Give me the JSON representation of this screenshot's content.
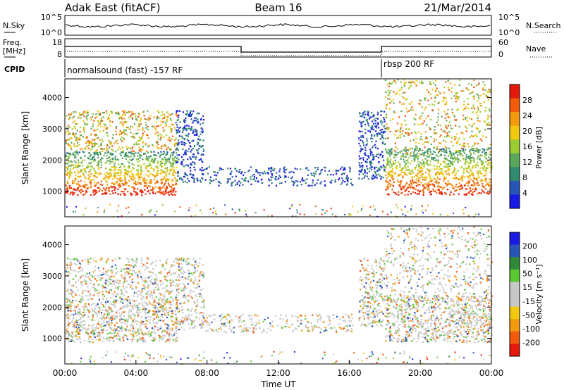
{
  "header": {
    "station": "Adak East (fitACF)",
    "beam": "Beam 16",
    "date": "21/Mar/2014"
  },
  "panels": {
    "nsky": {
      "left_label": "N.Sky",
      "right_label": "N.Search",
      "left_ticks": [
        "10^5",
        "10^0"
      ],
      "right_ticks": [
        "10^5",
        "10^0"
      ]
    },
    "freq": {
      "left_label_1": "Freq.",
      "left_label_2": "[MHz]",
      "left_ticks": [
        "18",
        "8"
      ],
      "right_label": "Nave",
      "right_ticks": [
        "60",
        "0"
      ]
    },
    "cpid": {
      "label": "CPID",
      "mode_1": "normalsound (fast) -157 RF",
      "mode_2": "rbsp 200 RF"
    }
  },
  "colors": {
    "power": [
      "#1a1ae6",
      "#2a55b8",
      "#2f8a6e",
      "#5aa65a",
      "#9ccc32",
      "#f2c80c",
      "#f29a0c",
      "#f25a0c",
      "#e61a0c"
    ],
    "velocity": [
      "#e61a0c",
      "#f25a0c",
      "#f29a0c",
      "#f2c80c",
      "#c8c8c8",
      "#c8c8c8",
      "#5ac832",
      "#2f8a3a",
      "#2a55b8",
      "#1a1ae6"
    ]
  },
  "chart_data": [
    {
      "type": "heatmap",
      "name": "power",
      "xlabel": "",
      "ylabel": "Slant Range [km]",
      "y_ticks": [
        "1000",
        "2000",
        "3000",
        "4000"
      ],
      "ylim": [
        180,
        4600
      ],
      "colorbar_label": "Power [dB]",
      "colorbar_ticks": [
        "4",
        "8",
        "12",
        "16",
        "20",
        "24",
        "28"
      ],
      "echo_bands": [
        {
          "t0": 0.0,
          "t1": 6.3,
          "r0": 900,
          "r1": 2300,
          "level": "strong"
        },
        {
          "t0": 0.0,
          "t1": 6.3,
          "r0": 2300,
          "r1": 3600,
          "level": "mixed"
        },
        {
          "t0": 6.2,
          "t1": 7.8,
          "r0": 1300,
          "r1": 3600,
          "level": "weak"
        },
        {
          "t0": 7.7,
          "t1": 16.2,
          "r0": 1200,
          "r1": 1800,
          "level": "weak"
        },
        {
          "t0": 16.5,
          "t1": 18.0,
          "r0": 1400,
          "r1": 3600,
          "level": "weak"
        },
        {
          "t0": 18.0,
          "t1": 24.0,
          "r0": 900,
          "r1": 2400,
          "level": "strong"
        },
        {
          "t0": 18.0,
          "t1": 24.0,
          "r0": 2200,
          "r1": 4600,
          "level": "mixed"
        }
      ]
    },
    {
      "type": "heatmap",
      "name": "velocity",
      "xlabel": "Time UT",
      "ylabel": "Slant Range [km]",
      "y_ticks": [
        "1000",
        "2000",
        "3000",
        "4000"
      ],
      "ylim": [
        180,
        4600
      ],
      "x_ticks": [
        "00:00",
        "04:00",
        "08:00",
        "12:00",
        "16:00",
        "20:00",
        "00:00"
      ],
      "xlim": [
        0,
        24
      ],
      "colorbar_label": "Velocity [m s⁻¹]",
      "colorbar_ticks": [
        "200",
        "100",
        "50",
        "15",
        "-15",
        "-50",
        "-100",
        "-200"
      ]
    }
  ]
}
